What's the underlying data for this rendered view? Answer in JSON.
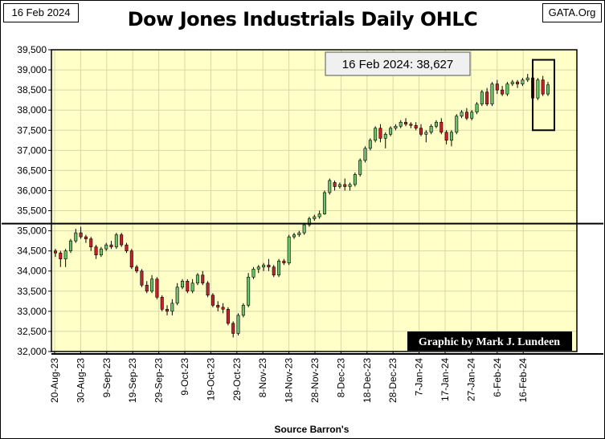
{
  "header": {
    "date_label": "16 Feb 2024",
    "source_label": "GATA.Org",
    "title": "Dow Jones Industrials Daily OHLC"
  },
  "annotations": {
    "last_close": "16 Feb 2024:  38,627",
    "credit": "Graphic by Mark J. Lundeen",
    "source": "Source Barron's"
  },
  "colors": {
    "plot_bg": "#ffffc8",
    "up": "#6ac36a",
    "down": "#c8202a",
    "line": "#000000"
  },
  "chart_data": {
    "type": "candlestick",
    "title": "Dow Jones Industrials Daily OHLC",
    "ylim": [
      32000,
      39500
    ],
    "yticks": [
      32000,
      32500,
      33000,
      33500,
      34000,
      34500,
      35000,
      35500,
      36000,
      36500,
      37000,
      37500,
      38000,
      38500,
      39000,
      39500
    ],
    "ytick_labels": [
      "32,000",
      "32,500",
      "33,000",
      "33,500",
      "34,000",
      "34,500",
      "35,000",
      "35,500",
      "36,000",
      "36,500",
      "37,000",
      "37,500",
      "38,000",
      "38,500",
      "39,000",
      "39,500"
    ],
    "xticks": [
      "20-Aug-23",
      "30-Aug-23",
      "9-Sep-23",
      "19-Sep-23",
      "29-Sep-23",
      "9-Oct-23",
      "19-Oct-23",
      "29-Oct-23",
      "8-Nov-23",
      "18-Nov-23",
      "28-Nov-23",
      "8-Dec-23",
      "18-Dec-23",
      "28-Dec-23",
      "7-Jan-24",
      "17-Jan-24",
      "27-Jan-24",
      "6-Feb-24",
      "16-Feb-24"
    ],
    "reference_line": 35180,
    "highlight_box": [
      37500,
      39250
    ],
    "last_close_value": 38627,
    "days": [
      {
        "o": 34500,
        "h": 34550,
        "l": 34350,
        "c": 34450
      },
      {
        "o": 34450,
        "h": 34500,
        "l": 34100,
        "c": 34300
      },
      {
        "o": 34300,
        "h": 34550,
        "l": 34100,
        "c": 34500
      },
      {
        "o": 34500,
        "h": 34800,
        "l": 34450,
        "c": 34750
      },
      {
        "o": 34750,
        "h": 35050,
        "l": 34700,
        "c": 34950
      },
      {
        "o": 34950,
        "h": 35100,
        "l": 34800,
        "c": 34850
      },
      {
        "o": 34850,
        "h": 34900,
        "l": 34700,
        "c": 34800
      },
      {
        "o": 34800,
        "h": 34850,
        "l": 34500,
        "c": 34600
      },
      {
        "o": 34600,
        "h": 34650,
        "l": 34300,
        "c": 34400
      },
      {
        "o": 34400,
        "h": 34600,
        "l": 34350,
        "c": 34550
      },
      {
        "o": 34550,
        "h": 34700,
        "l": 34500,
        "c": 34650
      },
      {
        "o": 34650,
        "h": 34750,
        "l": 34550,
        "c": 34600
      },
      {
        "o": 34600,
        "h": 34950,
        "l": 34550,
        "c": 34900
      },
      {
        "o": 34900,
        "h": 34950,
        "l": 34600,
        "c": 34650
      },
      {
        "o": 34650,
        "h": 34700,
        "l": 34450,
        "c": 34500
      },
      {
        "o": 34500,
        "h": 34550,
        "l": 34050,
        "c": 34100
      },
      {
        "o": 34100,
        "h": 34150,
        "l": 33950,
        "c": 34000
      },
      {
        "o": 34000,
        "h": 34050,
        "l": 33600,
        "c": 33650
      },
      {
        "o": 33650,
        "h": 33750,
        "l": 33450,
        "c": 33500
      },
      {
        "o": 33500,
        "h": 33900,
        "l": 33450,
        "c": 33800
      },
      {
        "o": 33800,
        "h": 33850,
        "l": 33300,
        "c": 33350
      },
      {
        "o": 33350,
        "h": 33400,
        "l": 33000,
        "c": 33050
      },
      {
        "o": 33050,
        "h": 33150,
        "l": 32900,
        "c": 33000
      },
      {
        "o": 33000,
        "h": 33300,
        "l": 32900,
        "c": 33200
      },
      {
        "o": 33200,
        "h": 33700,
        "l": 33150,
        "c": 33600
      },
      {
        "o": 33600,
        "h": 33800,
        "l": 33550,
        "c": 33750
      },
      {
        "o": 33750,
        "h": 33800,
        "l": 33450,
        "c": 33500
      },
      {
        "o": 33500,
        "h": 33800,
        "l": 33450,
        "c": 33700
      },
      {
        "o": 33700,
        "h": 33950,
        "l": 33650,
        "c": 33900
      },
      {
        "o": 33900,
        "h": 34000,
        "l": 33650,
        "c": 33700
      },
      {
        "o": 33700,
        "h": 33750,
        "l": 33350,
        "c": 33400
      },
      {
        "o": 33400,
        "h": 33450,
        "l": 33100,
        "c": 33150
      },
      {
        "o": 33150,
        "h": 33250,
        "l": 33000,
        "c": 33100
      },
      {
        "o": 33100,
        "h": 33200,
        "l": 32950,
        "c": 33050
      },
      {
        "o": 33050,
        "h": 33100,
        "l": 32650,
        "c": 32700
      },
      {
        "o": 32700,
        "h": 32750,
        "l": 32350,
        "c": 32450
      },
      {
        "o": 32450,
        "h": 32950,
        "l": 32400,
        "c": 32900
      },
      {
        "o": 32900,
        "h": 33200,
        "l": 32850,
        "c": 33150
      },
      {
        "o": 33150,
        "h": 33950,
        "l": 33100,
        "c": 33850
      },
      {
        "o": 33850,
        "h": 34100,
        "l": 33800,
        "c": 34050
      },
      {
        "o": 34050,
        "h": 34150,
        "l": 33950,
        "c": 34100
      },
      {
        "o": 34100,
        "h": 34200,
        "l": 34000,
        "c": 34150
      },
      {
        "o": 34150,
        "h": 34300,
        "l": 34000,
        "c": 34100
      },
      {
        "o": 34100,
        "h": 34150,
        "l": 33850,
        "c": 33900
      },
      {
        "o": 33900,
        "h": 34300,
        "l": 33850,
        "c": 34250
      },
      {
        "o": 34250,
        "h": 34300,
        "l": 34150,
        "c": 34200
      },
      {
        "o": 34200,
        "h": 34900,
        "l": 34150,
        "c": 34850
      },
      {
        "o": 34850,
        "h": 34950,
        "l": 34800,
        "c": 34900
      },
      {
        "o": 34900,
        "h": 35000,
        "l": 34850,
        "c": 34950
      },
      {
        "o": 34950,
        "h": 35200,
        "l": 34900,
        "c": 35150
      },
      {
        "o": 35150,
        "h": 35350,
        "l": 35100,
        "c": 35300
      },
      {
        "o": 35300,
        "h": 35400,
        "l": 35250,
        "c": 35350
      },
      {
        "o": 35350,
        "h": 35500,
        "l": 35300,
        "c": 35420
      },
      {
        "o": 35420,
        "h": 36000,
        "l": 35400,
        "c": 35950
      },
      {
        "o": 35950,
        "h": 36300,
        "l": 35900,
        "c": 36250
      },
      {
        "o": 36200,
        "h": 36250,
        "l": 36000,
        "c": 36100
      },
      {
        "o": 36100,
        "h": 36200,
        "l": 36050,
        "c": 36150
      },
      {
        "o": 36150,
        "h": 36300,
        "l": 36000,
        "c": 36100
      },
      {
        "o": 36100,
        "h": 36200,
        "l": 36000,
        "c": 36150
      },
      {
        "o": 36150,
        "h": 36450,
        "l": 36100,
        "c": 36400
      },
      {
        "o": 36400,
        "h": 36800,
        "l": 36350,
        "c": 36750
      },
      {
        "o": 36750,
        "h": 37100,
        "l": 36700,
        "c": 37050
      },
      {
        "o": 37050,
        "h": 37300,
        "l": 37000,
        "c": 37250
      },
      {
        "o": 37250,
        "h": 37600,
        "l": 37200,
        "c": 37550
      },
      {
        "o": 37550,
        "h": 37650,
        "l": 37200,
        "c": 37300
      },
      {
        "o": 37300,
        "h": 37450,
        "l": 37050,
        "c": 37400
      },
      {
        "o": 37400,
        "h": 37600,
        "l": 37350,
        "c": 37550
      },
      {
        "o": 37550,
        "h": 37650,
        "l": 37500,
        "c": 37600
      },
      {
        "o": 37600,
        "h": 37750,
        "l": 37550,
        "c": 37700
      },
      {
        "o": 37700,
        "h": 37800,
        "l": 37600,
        "c": 37650
      },
      {
        "o": 37650,
        "h": 37700,
        "l": 37550,
        "c": 37620
      },
      {
        "o": 37620,
        "h": 37700,
        "l": 37500,
        "c": 37550
      },
      {
        "o": 37550,
        "h": 37650,
        "l": 37350,
        "c": 37400
      },
      {
        "o": 37400,
        "h": 37500,
        "l": 37200,
        "c": 37450
      },
      {
        "o": 37450,
        "h": 37650,
        "l": 37400,
        "c": 37600
      },
      {
        "o": 37600,
        "h": 37750,
        "l": 37550,
        "c": 37700
      },
      {
        "o": 37700,
        "h": 37800,
        "l": 37400,
        "c": 37450
      },
      {
        "o": 37450,
        "h": 37500,
        "l": 37150,
        "c": 37250
      },
      {
        "o": 37250,
        "h": 37500,
        "l": 37100,
        "c": 37450
      },
      {
        "o": 37450,
        "h": 37900,
        "l": 37400,
        "c": 37850
      },
      {
        "o": 37850,
        "h": 38000,
        "l": 37800,
        "c": 37950
      },
      {
        "o": 37950,
        "h": 38050,
        "l": 37750,
        "c": 37800
      },
      {
        "o": 37800,
        "h": 38000,
        "l": 37750,
        "c": 37950
      },
      {
        "o": 37950,
        "h": 38200,
        "l": 37900,
        "c": 38150
      },
      {
        "o": 38150,
        "h": 38500,
        "l": 38100,
        "c": 38450
      },
      {
        "o": 38450,
        "h": 38550,
        "l": 38100,
        "c": 38150
      },
      {
        "o": 38150,
        "h": 38700,
        "l": 38100,
        "c": 38650
      },
      {
        "o": 38650,
        "h": 38750,
        "l": 38400,
        "c": 38500
      },
      {
        "o": 38500,
        "h": 38600,
        "l": 38350,
        "c": 38400
      },
      {
        "o": 38400,
        "h": 38700,
        "l": 38350,
        "c": 38650
      },
      {
        "o": 38650,
        "h": 38750,
        "l": 38600,
        "c": 38700
      },
      {
        "o": 38700,
        "h": 38750,
        "l": 38550,
        "c": 38650
      },
      {
        "o": 38650,
        "h": 38800,
        "l": 38600,
        "c": 38750
      },
      {
        "o": 38750,
        "h": 38900,
        "l": 38700,
        "c": 38800
      },
      {
        "o": 38800,
        "h": 38850,
        "l": 38000,
        "c": 38300
      },
      {
        "o": 38300,
        "h": 38800,
        "l": 38250,
        "c": 38750
      },
      {
        "o": 38750,
        "h": 38850,
        "l": 38350,
        "c": 38400
      },
      {
        "o": 38400,
        "h": 38700,
        "l": 38350,
        "c": 38627
      }
    ]
  }
}
